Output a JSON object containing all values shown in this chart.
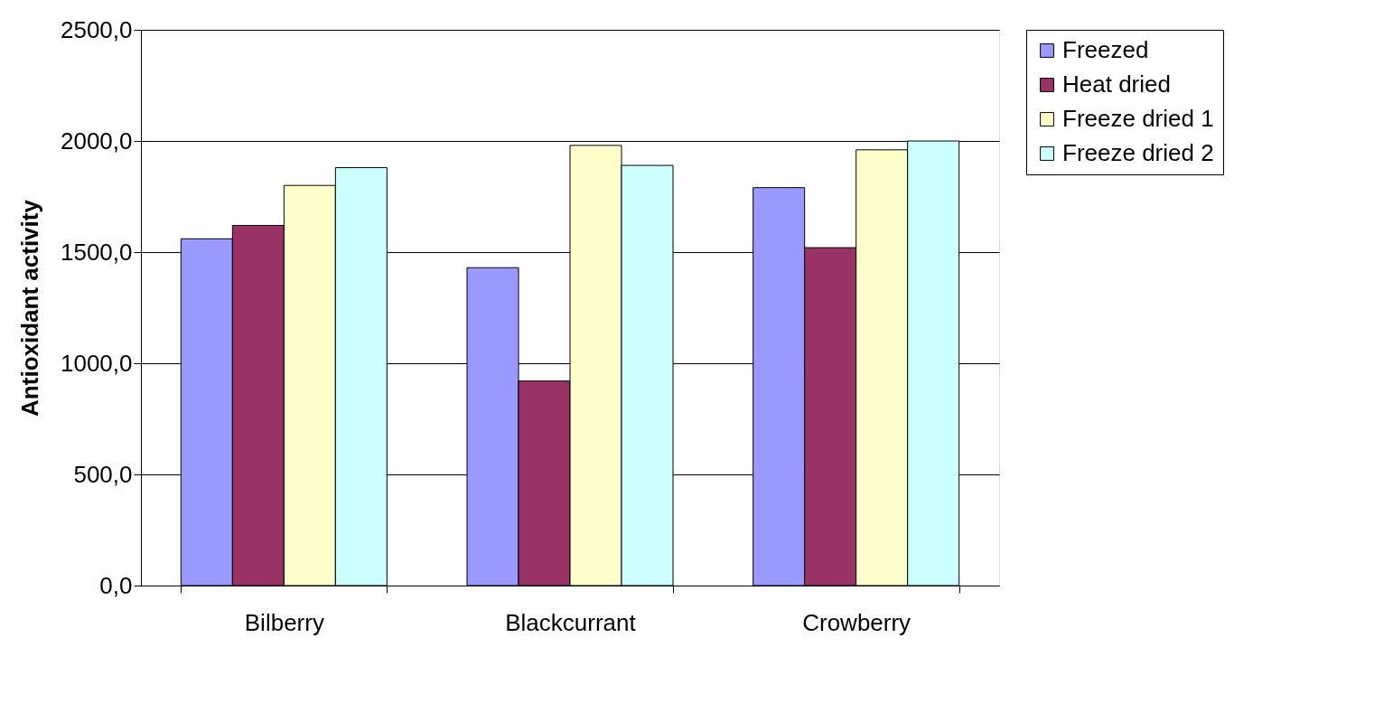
{
  "chart_data": {
    "type": "bar",
    "ylabel": "Antioxidant activity",
    "categories": [
      "Bilberry",
      "Blackcurrant",
      "Crowberry"
    ],
    "series": [
      {
        "name": "Freezed",
        "color": "#9999ff",
        "values": [
          1560,
          1430,
          1790
        ]
      },
      {
        "name": "Heat dried",
        "color": "#993366",
        "values": [
          1620,
          920,
          1520
        ]
      },
      {
        "name": "Freeze dried 1",
        "color": "#ffffcc",
        "values": [
          1800,
          1980,
          1960
        ]
      },
      {
        "name": "Freeze dried 2",
        "color": "#ccffff",
        "values": [
          1880,
          1890,
          2000
        ]
      }
    ],
    "ylim": [
      0,
      2500
    ],
    "yticks": [
      {
        "value": 0,
        "label": "0,0"
      },
      {
        "value": 500,
        "label": "500,0"
      },
      {
        "value": 1000,
        "label": "1000,0"
      },
      {
        "value": 1500,
        "label": "1500,0"
      },
      {
        "value": 2000,
        "label": "2000,0"
      },
      {
        "value": 2500,
        "label": "2500,0"
      }
    ],
    "grid": "y",
    "legend": "right"
  }
}
